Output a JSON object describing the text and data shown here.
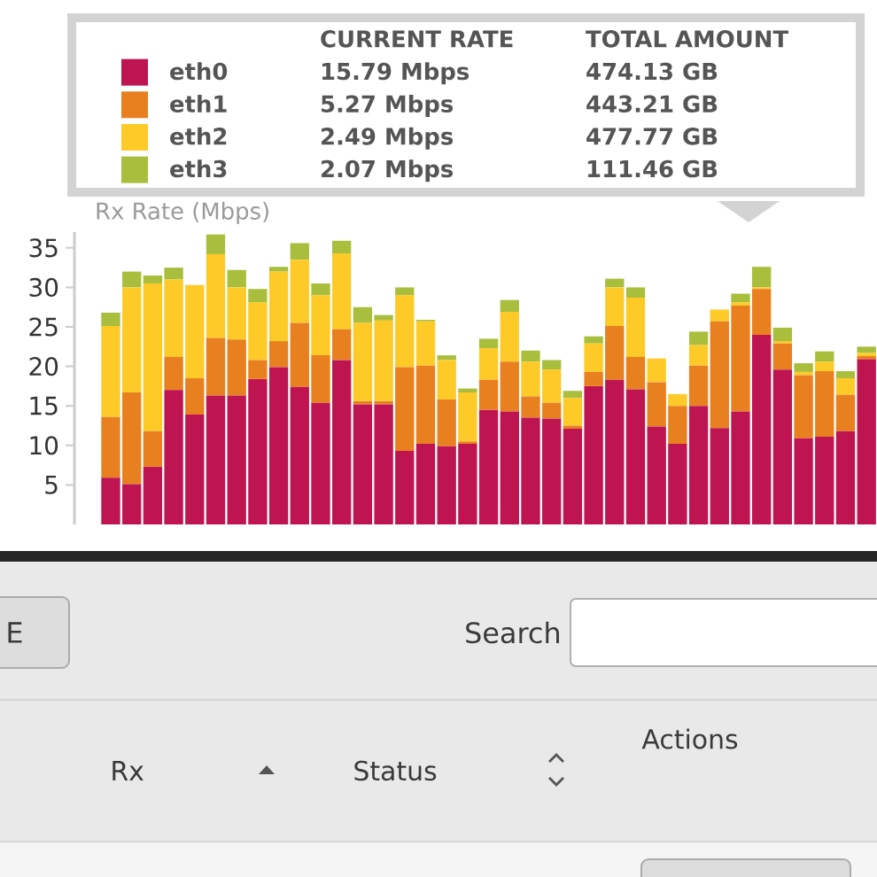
{
  "chart_data": {
    "type": "bar",
    "ylabel": "Rx Rate (Mbps)",
    "stacked": true,
    "categories": [
      null,
      null,
      null,
      null,
      null,
      null,
      null,
      null,
      null,
      null,
      null,
      null,
      null,
      null,
      null,
      null,
      null,
      null,
      null,
      null,
      null,
      null,
      null,
      null,
      null,
      null,
      null,
      null,
      null,
      null,
      null,
      null,
      null,
      null,
      null,
      null,
      null
    ],
    "series": [
      {
        "name": "eth0",
        "color": "#be1550",
        "values": [
          5.9,
          5.1,
          7.3,
          17.0,
          13.9,
          16.3,
          16.3,
          18.4,
          19.9,
          17.4,
          15.4,
          20.8,
          15.2,
          15.2,
          9.3,
          10.2,
          9.9,
          10.2,
          14.5,
          14.3,
          13.5,
          13.4,
          12.1,
          17.5,
          18.3,
          17.1,
          12.4,
          10.2,
          15.0,
          12.2,
          14.3,
          24.0,
          19.6,
          10.9,
          11.1,
          11.8,
          20.9
        ]
      },
      {
        "name": "eth1",
        "color": "#e8801f",
        "values": [
          7.7,
          11.6,
          4.5,
          4.2,
          4.6,
          7.3,
          7.1,
          2.4,
          3.3,
          8.1,
          6.0,
          3.9,
          0.4,
          0.4,
          10.6,
          9.9,
          5.9,
          0.3,
          3.8,
          6.3,
          2.7,
          2.0,
          0.4,
          1.8,
          6.8,
          4.1,
          5.6,
          4.8,
          5.1,
          13.5,
          13.4,
          5.8,
          3.3,
          8.0,
          8.3,
          4.6,
          0.4
        ]
      },
      {
        "name": "eth2",
        "color": "#fdca28",
        "values": [
          11.5,
          13.3,
          18.7,
          9.8,
          11.8,
          10.6,
          6.6,
          7.3,
          8.8,
          8.0,
          7.6,
          9.6,
          9.9,
          10.2,
          9.1,
          5.6,
          5.0,
          6.2,
          4.0,
          6.3,
          4.4,
          4.2,
          3.5,
          3.6,
          4.9,
          7.5,
          3.0,
          1.5,
          2.6,
          1.5,
          0.4,
          0.2,
          0.3,
          0.4,
          1.2,
          2.1,
          0.4
        ]
      },
      {
        "name": "eth3",
        "color": "#a9be3c",
        "values": [
          1.7,
          2.0,
          1.0,
          1.5,
          0,
          2.5,
          2.2,
          1.7,
          0.6,
          2.1,
          1.5,
          1.6,
          2.0,
          0.7,
          1.0,
          0.2,
          0.6,
          0.5,
          1.2,
          1.5,
          1.4,
          1.2,
          0.9,
          0.9,
          1.1,
          1.3,
          0,
          0,
          1.7,
          0,
          1.1,
          2.6,
          1.7,
          1.1,
          1.3,
          0.9,
          0.8
        ]
      }
    ],
    "ylim": [
      0,
      37
    ],
    "yticks": [
      5,
      10,
      15,
      20,
      25,
      30,
      35
    ],
    "legend": "top",
    "annotations": [
      "CURRENT RATE",
      "TOTAL AMOUNT",
      "15.79 Mbps",
      "474.13 GB",
      "5.27 Mbps",
      "443.21 GB",
      "2.49 Mbps",
      "477.77 GB",
      "2.07 Mbps",
      "111.46 GB",
      "E",
      "Search",
      "Rx",
      "Status",
      "Actions"
    ]
  }
}
